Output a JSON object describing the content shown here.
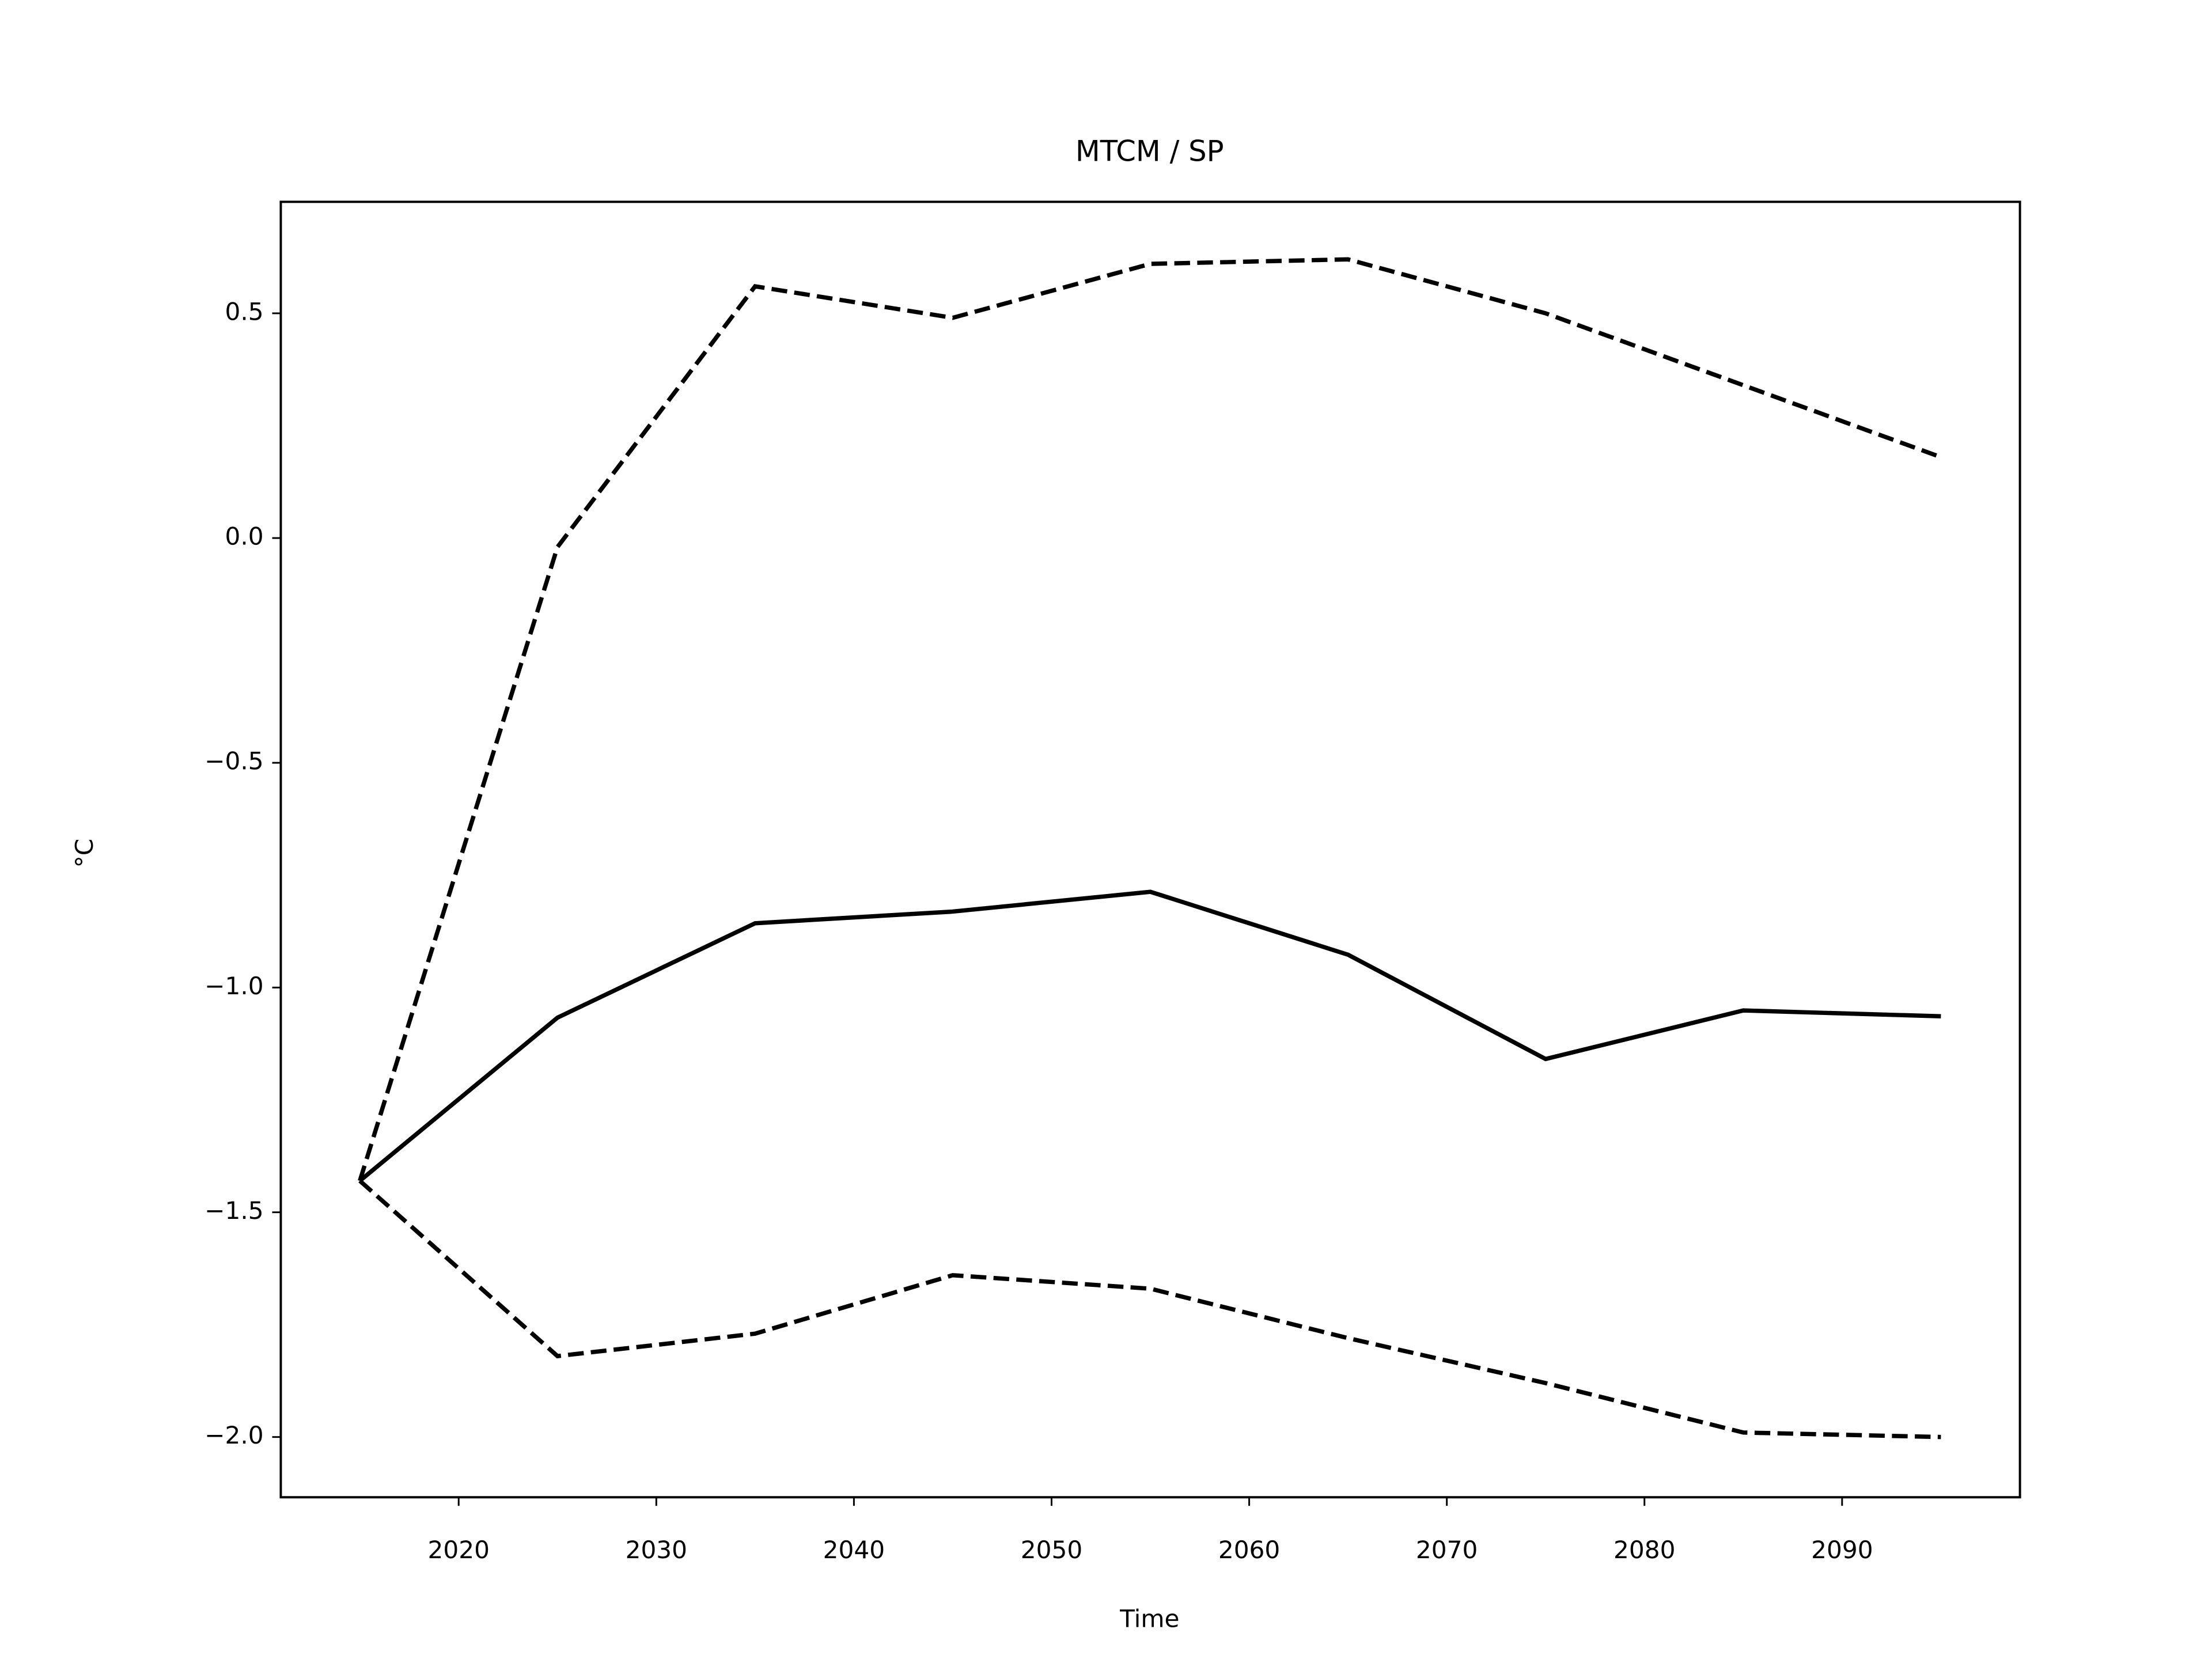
{
  "chart_data": {
    "type": "line",
    "title": "MTCM / SP",
    "xlabel": "Time",
    "ylabel": "°C",
    "x": [
      2015,
      2025,
      2035,
      2045,
      2055,
      2065,
      2075,
      2085,
      2095
    ],
    "series": [
      {
        "color": "#000000",
        "style": "solid",
        "values": [
          -1.43,
          -1.067,
          -0.857,
          -0.831,
          -0.787,
          -0.927,
          -1.159,
          -1.051,
          -1.064
        ]
      },
      {
        "color": "#000000",
        "style": "dashed",
        "values": [
          -1.43,
          -0.02,
          0.56,
          0.49,
          0.61,
          0.62,
          0.5,
          0.34,
          0.18
        ]
      },
      {
        "color": "#000000",
        "style": "dashed",
        "values": [
          -1.43,
          -1.82,
          -1.77,
          -1.64,
          -1.67,
          -1.78,
          -1.88,
          -1.99,
          -2.0
        ]
      }
    ],
    "xlim": [
      2011,
      2099
    ],
    "xticks": [
      2020,
      2030,
      2040,
      2050,
      2060,
      2070,
      2080,
      2090
    ],
    "ylim": [
      -2.134,
      0.748
    ],
    "yticks": [
      {
        "value": -2.0,
        "label": "−2.0"
      },
      {
        "value": -1.5,
        "label": "−1.5"
      },
      {
        "value": -1.0,
        "label": "−1.0"
      },
      {
        "value": -0.5,
        "label": "−0.5"
      },
      {
        "value": 0.0,
        "label": "0.0"
      },
      0.5
    ],
    "grid": false
  }
}
